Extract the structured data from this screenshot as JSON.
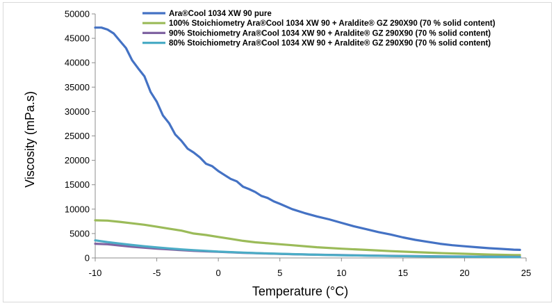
{
  "chart_data": {
    "type": "line",
    "title": "",
    "xlabel": "Temperature (°C)",
    "ylabel": "Viscosity (mPa.s)",
    "xlim": [
      -10,
      25
    ],
    "ylim": [
      0,
      50000
    ],
    "xticks": [
      -10,
      -5,
      0,
      5,
      10,
      15,
      20,
      25
    ],
    "yticks": [
      0,
      5000,
      10000,
      15000,
      20000,
      25000,
      30000,
      35000,
      40000,
      45000,
      50000
    ],
    "grid": false,
    "legend_position": "top-left",
    "series": [
      {
        "name": "Ara®Cool 1034 XW 90 pure",
        "color": "#4472c4",
        "x": [
          -10,
          -9.5,
          -9,
          -8.5,
          -8,
          -7.5,
          -7,
          -6.5,
          -6,
          -5.5,
          -5,
          -4.5,
          -4,
          -3.5,
          -3,
          -2.5,
          -2,
          -1.5,
          -1,
          -0.5,
          0,
          0.5,
          1,
          1.5,
          2,
          2.5,
          3,
          3.5,
          4,
          4.5,
          5,
          6,
          7,
          8,
          9,
          10,
          11,
          12,
          13,
          14,
          15,
          16,
          17,
          18,
          19,
          20,
          21,
          22,
          23,
          24,
          24.5
        ],
        "y": [
          47200,
          47200,
          46800,
          46000,
          44500,
          43000,
          40500,
          38800,
          37200,
          34000,
          32000,
          29200,
          27600,
          25300,
          24000,
          22400,
          21600,
          20600,
          19300,
          18800,
          17800,
          17000,
          16200,
          15700,
          14600,
          14100,
          13500,
          12700,
          12300,
          11600,
          11100,
          10000,
          9200,
          8500,
          7900,
          7200,
          6500,
          5900,
          5300,
          4800,
          4200,
          3700,
          3300,
          2900,
          2600,
          2400,
          2200,
          2000,
          1850,
          1700,
          1650
        ]
      },
      {
        "name": "100% Stoichiometry Ara®Cool 1034 XW 90 + Araldite® GZ 290X90 (70 % solid content)",
        "color": "#9bbb59",
        "x": [
          -10,
          -9,
          -8,
          -7,
          -6,
          -5,
          -4,
          -3,
          -2,
          -1,
          0,
          1,
          2,
          3,
          4,
          5,
          6,
          8,
          10,
          12,
          14,
          16,
          18,
          20,
          22,
          24,
          24.5
        ],
        "y": [
          7700,
          7650,
          7400,
          7100,
          6800,
          6400,
          6000,
          5600,
          5000,
          4700,
          4300,
          3900,
          3500,
          3200,
          3000,
          2800,
          2600,
          2200,
          1900,
          1650,
          1400,
          1200,
          1000,
          850,
          700,
          600,
          580
        ]
      },
      {
        "name": "90% Stoichiometry Ara®Cool 1034 XW 90 + Araldite® GZ 290X90 (70 % solid content)",
        "color": "#8064a2",
        "x": [
          -10,
          -9,
          -8,
          -7,
          -6,
          -5,
          -4,
          -3,
          -2,
          -1,
          0,
          1,
          2,
          3,
          4,
          5,
          6,
          8,
          10,
          12,
          14,
          16,
          18,
          20,
          22,
          24,
          24.5
        ],
        "y": [
          2900,
          2800,
          2550,
          2300,
          2100,
          1900,
          1750,
          1600,
          1450,
          1350,
          1250,
          1150,
          1050,
          980,
          900,
          830,
          770,
          660,
          580,
          500,
          430,
          380,
          330,
          290,
          260,
          230,
          220
        ]
      },
      {
        "name": "80% Stoichiometry Ara®Cool 1034 XW 90 + Araldite® GZ 290X90 (70 % solid content)",
        "color": "#4bacc6",
        "x": [
          -10,
          -9,
          -8,
          -7,
          -6,
          -5,
          -4,
          -3,
          -2,
          -1,
          0,
          1,
          2,
          3,
          4,
          5,
          6,
          8,
          10,
          12,
          14,
          16,
          18,
          20,
          22,
          24,
          24.5
        ],
        "y": [
          3600,
          3250,
          2950,
          2650,
          2400,
          2150,
          1950,
          1750,
          1600,
          1450,
          1300,
          1200,
          1100,
          1000,
          920,
          850,
          780,
          660,
          560,
          480,
          400,
          340,
          290,
          250,
          210,
          180,
          170
        ]
      }
    ]
  }
}
